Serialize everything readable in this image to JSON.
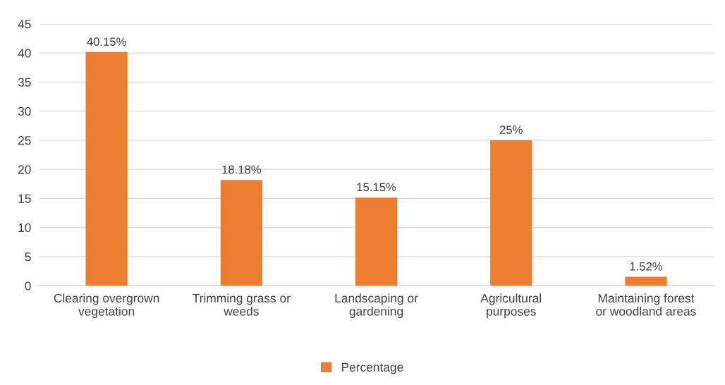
{
  "chart_data": {
    "type": "bar",
    "categories": [
      "Clearing overgrown\nvegetation",
      "Trimming grass or\nweeds",
      "Landscaping or\ngardening",
      "Agricultural\npurposes",
      "Maintaining forest\nor woodland areas"
    ],
    "series": [
      {
        "name": "Percentage",
        "color": "#ed7d31",
        "values": [
          40.15,
          18.18,
          15.15,
          25,
          1.52
        ],
        "value_labels": [
          "40.15%",
          "18.18%",
          "15.15%",
          "25%",
          "1.52%"
        ]
      }
    ],
    "ylim": [
      0,
      45
    ],
    "yticks": [
      0,
      5,
      10,
      15,
      20,
      25,
      30,
      35,
      40,
      45
    ],
    "grid": "y",
    "legend": "bottom"
  }
}
